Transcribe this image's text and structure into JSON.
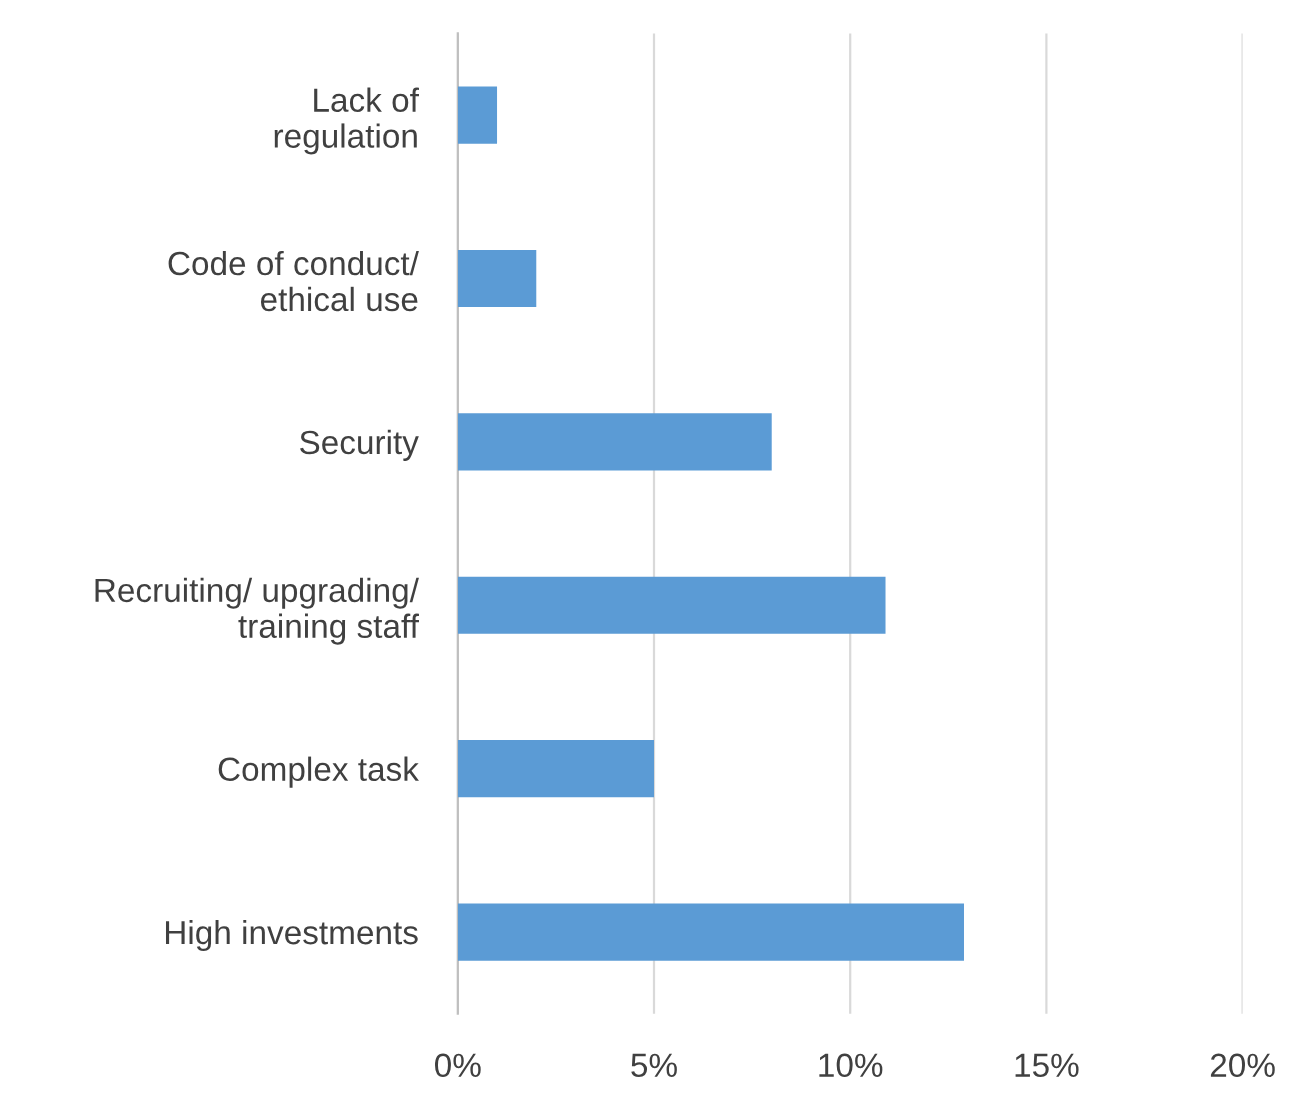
{
  "chart_data": {
    "type": "bar",
    "orientation": "horizontal",
    "categories": [
      "Lack of\nregulation",
      "Code of conduct/\nethical use",
      "Security",
      "Recruiting/ upgrading/\ntraining staff",
      "Complex task",
      "High investments"
    ],
    "values": [
      1,
      2,
      8,
      10.9,
      5,
      12.9
    ],
    "color": "#5b9bd5",
    "xlim": [
      0,
      20
    ],
    "xticks": [
      {
        "value": 0,
        "label": "0%"
      },
      {
        "value": 5,
        "label": "5%"
      },
      {
        "value": 10,
        "label": "10%"
      },
      {
        "value": 15,
        "label": "15%"
      },
      {
        "value": 20,
        "label": "20%"
      }
    ],
    "grid": "x",
    "legend": false
  }
}
